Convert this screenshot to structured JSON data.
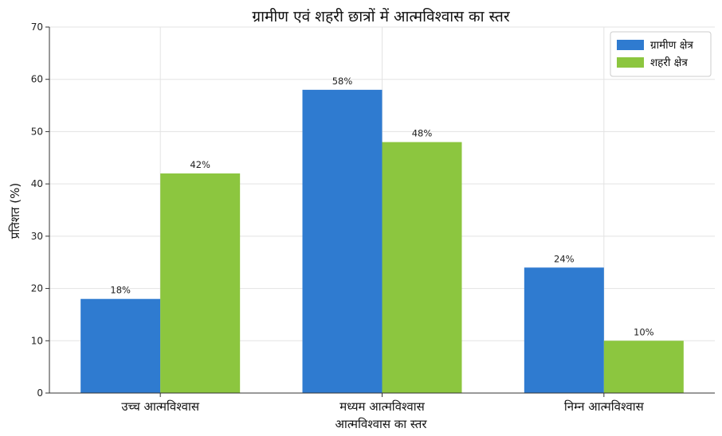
{
  "chart_data": {
    "type": "bar",
    "title": "ग्रामीण एवं शहरी छात्रों में आत्मविश्वास का स्तर",
    "xlabel": "आत्मविश्वास का स्तर",
    "ylabel": "प्रतिशत (%)",
    "categories": [
      "उच्च आत्मविश्वास",
      "मध्यम आत्मविश्वास",
      "निम्न आत्मविश्वास"
    ],
    "series": [
      {
        "name": "ग्रामीण क्षेत्र",
        "values": [
          18,
          58,
          24
        ],
        "labels": [
          "18%",
          "58%",
          "24%"
        ],
        "color": "#2f7bd0"
      },
      {
        "name": "शहरी क्षेत्र",
        "values": [
          42,
          48,
          10
        ],
        "labels": [
          "42%",
          "48%",
          "10%"
        ],
        "color": "#8cc63f"
      }
    ],
    "ylim": [
      0,
      70
    ],
    "yticks": [
      "0",
      "10",
      "20",
      "30",
      "40",
      "50",
      "60",
      "70"
    ],
    "grid": true,
    "legend_position": "top-right"
  }
}
